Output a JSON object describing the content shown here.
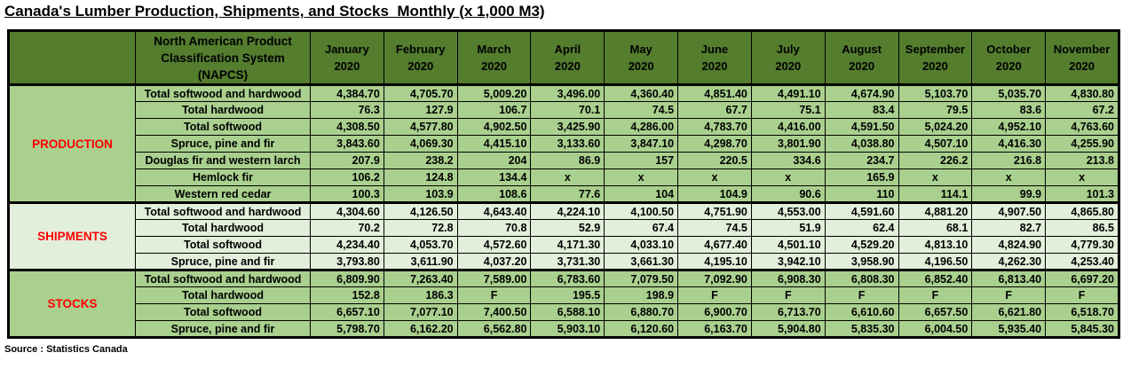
{
  "title": "Canada's Lumber Production, Shipments, and Stocks  Monthly (x 1,000 M3)",
  "source": "Source : Statistics Canada",
  "colors": {
    "header_bg": "#547D2E",
    "header_text": "#1F3864",
    "row_green": "#A9D08E",
    "row_light_green": "#E2EFDA",
    "section_label_text": "#FF0000",
    "border": "#000000"
  },
  "header": {
    "napcs_lines": [
      "North American Product",
      "Classification System",
      "(NAPCS)"
    ],
    "months": [
      {
        "name": "January",
        "year": "2020"
      },
      {
        "name": "February",
        "year": "2020"
      },
      {
        "name": "March",
        "year": "2020"
      },
      {
        "name": "April",
        "year": "2020"
      },
      {
        "name": "May",
        "year": "2020"
      },
      {
        "name": "June",
        "year": "2020"
      },
      {
        "name": "July",
        "year": "2020"
      },
      {
        "name": "August",
        "year": "2020"
      },
      {
        "name": "September",
        "year": "2020"
      },
      {
        "name": "October",
        "year": "2020"
      },
      {
        "name": "November",
        "year": "2020"
      }
    ]
  },
  "chart_data": {
    "type": "table",
    "title": "Canada's Lumber Production, Shipments, and Stocks  Monthly (x 1,000 M3)",
    "columns": [
      "January 2020",
      "February 2020",
      "March 2020",
      "April 2020",
      "May 2020",
      "June 2020",
      "July 2020",
      "August 2020",
      "September 2020",
      "October 2020",
      "November 2020"
    ],
    "sections": [
      {
        "label": "PRODUCTION",
        "shade": "green",
        "rows": [
          {
            "label": "Total softwood and hardwood",
            "values": [
              "4,384.70",
              "4,705.70",
              "5,009.20",
              "3,496.00",
              "4,360.40",
              "4,851.40",
              "4,491.10",
              "4,674.90",
              "5,103.70",
              "5,035.70",
              "4,830.80"
            ]
          },
          {
            "label": "Total hardwood",
            "values": [
              "76.3",
              "127.9",
              "106.7",
              "70.1",
              "74.5",
              "67.7",
              "75.1",
              "83.4",
              "79.5",
              "83.6",
              "67.2"
            ]
          },
          {
            "label": "Total softwood",
            "values": [
              "4,308.50",
              "4,577.80",
              "4,902.50",
              "3,425.90",
              "4,286.00",
              "4,783.70",
              "4,416.00",
              "4,591.50",
              "5,024.20",
              "4,952.10",
              "4,763.60"
            ]
          },
          {
            "label": "Spruce, pine and fir",
            "values": [
              "3,843.60",
              "4,069.30",
              "4,415.10",
              "3,133.60",
              "3,847.10",
              "4,298.70",
              "3,801.90",
              "4,038.80",
              "4,507.10",
              "4,416.30",
              "4,255.90"
            ]
          },
          {
            "label": "Douglas fir and western larch",
            "values": [
              "207.9",
              "238.2",
              "204",
              "86.9",
              "157",
              "220.5",
              "334.6",
              "234.7",
              "226.2",
              "216.8",
              "213.8"
            ]
          },
          {
            "label": "Hemlock fir",
            "values": [
              "106.2",
              "124.8",
              "134.4",
              "x",
              "x",
              "x",
              "x",
              "165.9",
              "x",
              "x",
              "x"
            ]
          },
          {
            "label": "Western red cedar",
            "values": [
              "100.3",
              "103.9",
              "108.6",
              "77.6",
              "104",
              "104.9",
              "90.6",
              "110",
              "114.1",
              "99.9",
              "101.3"
            ]
          }
        ]
      },
      {
        "label": "SHIPMENTS",
        "shade": "light",
        "rows": [
          {
            "label": "Total softwood and hardwood",
            "values": [
              "4,304.60",
              "4,126.50",
              "4,643.40",
              "4,224.10",
              "4,100.50",
              "4,751.90",
              "4,553.00",
              "4,591.60",
              "4,881.20",
              "4,907.50",
              "4,865.80"
            ]
          },
          {
            "label": "Total hardwood",
            "values": [
              "70.2",
              "72.8",
              "70.8",
              "52.9",
              "67.4",
              "74.5",
              "51.9",
              "62.4",
              "68.1",
              "82.7",
              "86.5"
            ]
          },
          {
            "label": "Total softwood",
            "values": [
              "4,234.40",
              "4,053.70",
              "4,572.60",
              "4,171.30",
              "4,033.10",
              "4,677.40",
              "4,501.10",
              "4,529.20",
              "4,813.10",
              "4,824.90",
              "4,779.30"
            ]
          },
          {
            "label": "Spruce, pine and fir",
            "values": [
              "3,793.80",
              "3,611.90",
              "4,037.20",
              "3,731.30",
              "3,661.30",
              "4,195.10",
              "3,942.10",
              "3,958.90",
              "4,196.50",
              "4,262.30",
              "4,253.40"
            ]
          }
        ]
      },
      {
        "label": "STOCKS",
        "shade": "green",
        "rows": [
          {
            "label": "Total softwood and hardwood",
            "values": [
              "6,809.90",
              "7,263.40",
              "7,589.00",
              "6,783.60",
              "7,079.50",
              "7,092.90",
              "6,908.30",
              "6,808.30",
              "6,852.40",
              "6,813.40",
              "6,697.20"
            ]
          },
          {
            "label": "Total hardwood",
            "values": [
              "152.8",
              "186.3",
              "F",
              "195.5",
              "198.9",
              "F",
              "F",
              "F",
              "F",
              "F",
              "F"
            ]
          },
          {
            "label": "Total softwood",
            "values": [
              "6,657.10",
              "7,077.10",
              "7,400.50",
              "6,588.10",
              "6,880.70",
              "6,900.70",
              "6,713.70",
              "6,610.60",
              "6,657.50",
              "6,621.80",
              "6,518.70"
            ]
          },
          {
            "label": "Spruce, pine and fir",
            "values": [
              "5,798.70",
              "6,162.20",
              "6,562.80",
              "5,903.10",
              "6,120.60",
              "6,163.70",
              "5,904.80",
              "5,835.30",
              "6,004.50",
              "5,935.40",
              "5,845.30"
            ]
          }
        ]
      }
    ]
  }
}
